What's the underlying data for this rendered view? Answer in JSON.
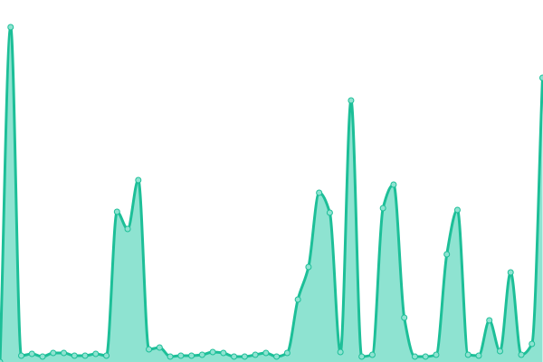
{
  "chart_data": {
    "type": "area",
    "title": "",
    "xlabel": "",
    "ylabel": "",
    "axes_visible": false,
    "grid": false,
    "curve": "smooth",
    "markers": true,
    "x": [
      0,
      1,
      2,
      3,
      4,
      5,
      6,
      7,
      8,
      9,
      10,
      11,
      12,
      13,
      14,
      15,
      16,
      17,
      18,
      19,
      20,
      21,
      22,
      23,
      24,
      25,
      26,
      27,
      28,
      29,
      30,
      31,
      32,
      33,
      34,
      35,
      36,
      37,
      38,
      39,
      40,
      41,
      42,
      43,
      44,
      45,
      46,
      47,
      48,
      49,
      50,
      51
    ],
    "values": [
      0,
      370,
      7,
      9,
      6,
      10,
      10,
      7,
      7,
      9,
      7,
      166,
      147,
      201,
      14,
      16,
      6,
      7,
      7,
      8,
      11,
      10,
      6,
      6,
      8,
      10,
      6,
      10,
      69,
      105,
      187,
      165,
      11,
      289,
      6,
      8,
      170,
      196,
      49,
      6,
      6,
      8,
      119,
      168,
      8,
      7,
      46,
      12,
      99,
      8,
      20,
      314
    ],
    "ylim": [
      0,
      400
    ],
    "colors": {
      "line": "#1dbf98",
      "fill": "#8ee3d1",
      "marker_fill": "#8ee3d1",
      "marker_stroke": "#1dbf98"
    }
  }
}
